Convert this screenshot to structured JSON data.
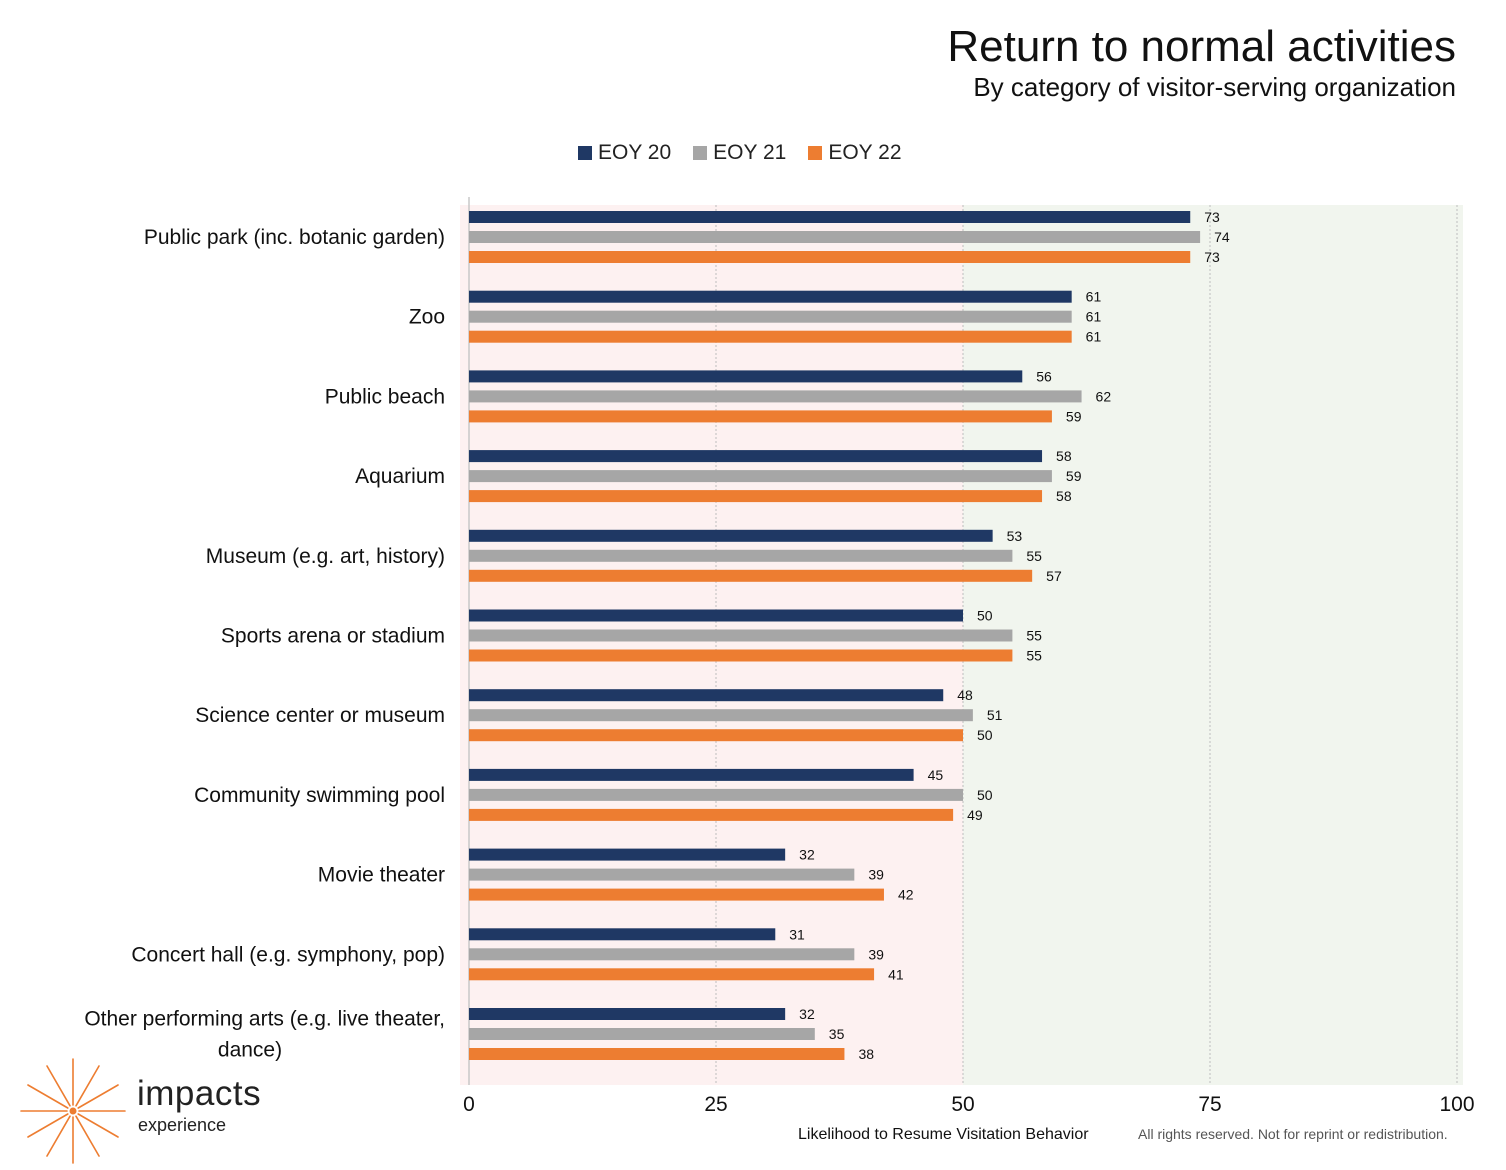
{
  "chart_data": {
    "type": "bar",
    "orientation": "horizontal",
    "title": "Return to normal activities",
    "subtitle": "By category of visitor-serving organization",
    "xlabel": "Likelihood to Resume Visitation Behavior",
    "ylabel": "",
    "xlim": [
      0,
      100
    ],
    "xticks": [
      0,
      25,
      50,
      75,
      100
    ],
    "grid": true,
    "legend_position": "top",
    "background_bands": [
      {
        "from": 0,
        "to": 50,
        "color": "#fdf1f1"
      },
      {
        "from": 50,
        "to": 100,
        "color": "#f1f5ee"
      }
    ],
    "categories": [
      "Public park (inc. botanic garden)",
      "Zoo",
      "Public beach",
      "Aquarium",
      "Museum (e.g. art, history)",
      "Sports arena or stadium",
      "Science center or museum",
      "Community swimming pool",
      "Movie theater",
      "Concert hall (e.g. symphony, pop)",
      "Other performing arts (e.g. live theater, dance)"
    ],
    "category_lines": [
      [
        "Public park (inc. botanic garden)"
      ],
      [
        "Zoo"
      ],
      [
        "Public beach"
      ],
      [
        "Aquarium"
      ],
      [
        "Museum (e.g. art, history)"
      ],
      [
        "Sports arena or stadium"
      ],
      [
        "Science center or museum"
      ],
      [
        "Community swimming pool"
      ],
      [
        "Movie theater"
      ],
      [
        "Concert hall (e.g. symphony, pop)"
      ],
      [
        "Other performing arts (e.g. live theater,",
        "dance)"
      ]
    ],
    "series": [
      {
        "name": "EOY 20",
        "color": "#1f3864",
        "values": [
          73,
          61,
          56,
          58,
          53,
          50,
          48,
          45,
          32,
          31,
          32
        ]
      },
      {
        "name": "EOY 21",
        "color": "#a6a6a6",
        "values": [
          74,
          61,
          62,
          59,
          55,
          55,
          51,
          50,
          39,
          39,
          35
        ]
      },
      {
        "name": "EOY 22",
        "color": "#ed7d31",
        "values": [
          73,
          61,
          59,
          58,
          57,
          55,
          50,
          49,
          42,
          41,
          38
        ]
      }
    ]
  },
  "logo": {
    "word": "impacts",
    "sub": "experience",
    "color": "#ed7d31"
  },
  "footer": {
    "rights": "All rights reserved. Not for reprint or redistribution."
  }
}
